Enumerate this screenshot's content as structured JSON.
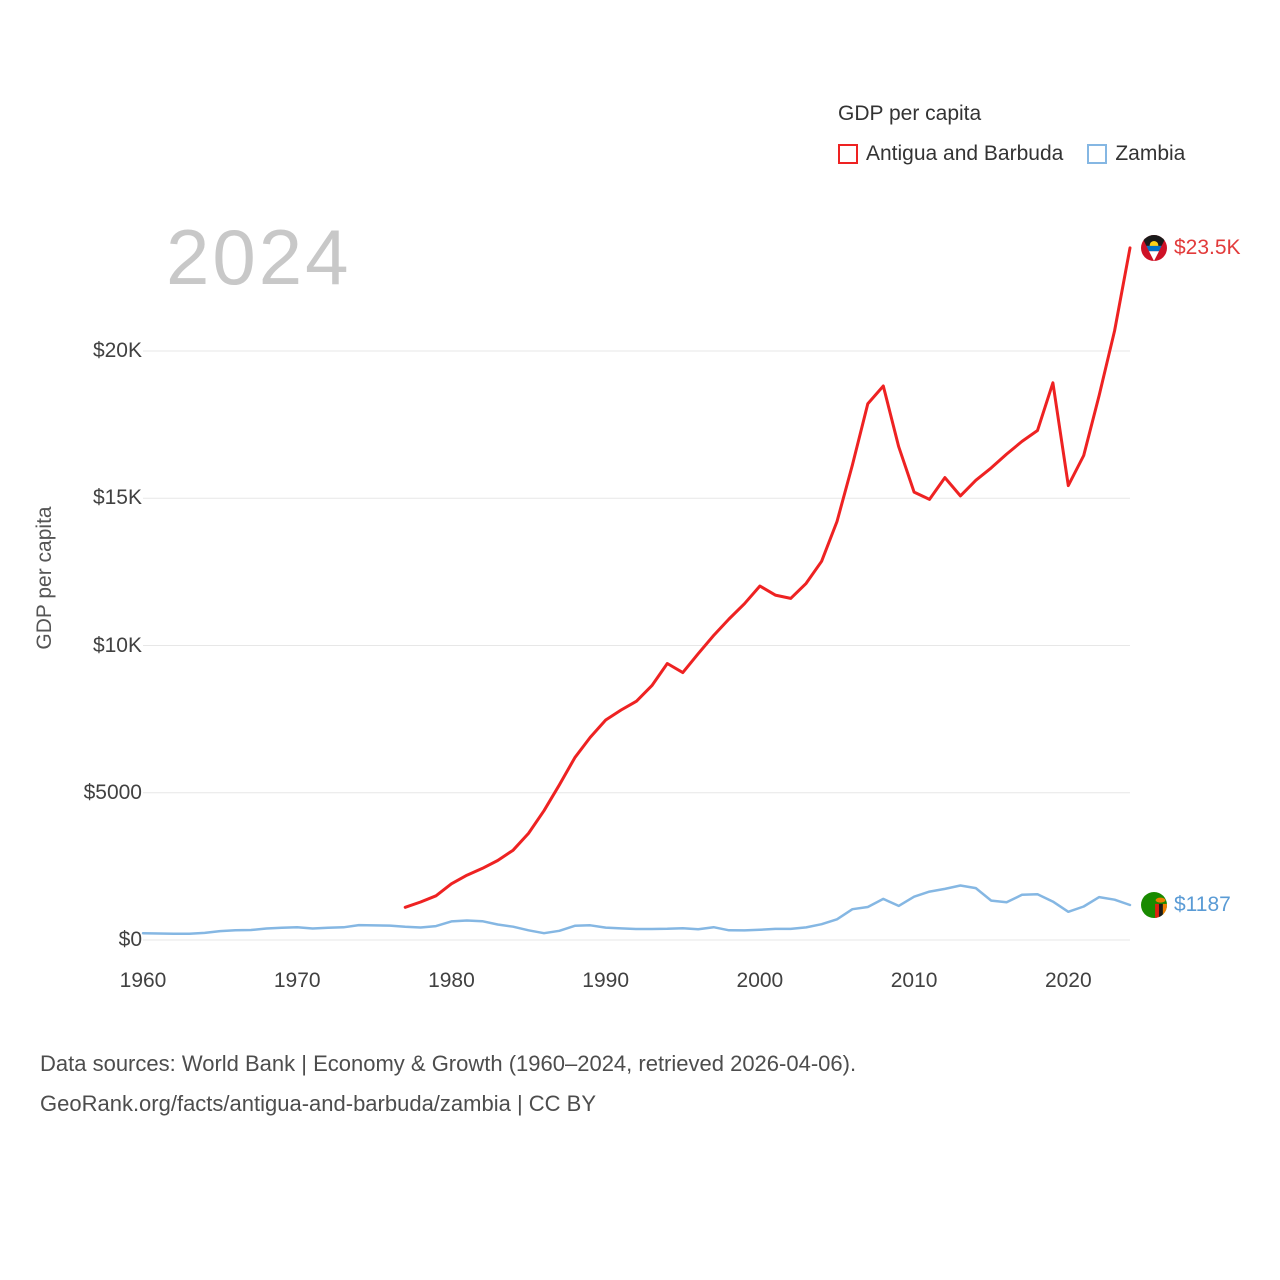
{
  "watermark_year": "2024",
  "legend": {
    "title": "GDP per capita",
    "items": [
      {
        "label": "Antigua and Barbuda",
        "color": "#ee2222"
      },
      {
        "label": "Zambia",
        "color": "#85b7e3"
      }
    ]
  },
  "y_axis": {
    "title": "GDP per capita",
    "ticks": [
      {
        "label": "$0",
        "value": 0
      },
      {
        "label": "$5000",
        "value": 5000
      },
      {
        "label": "$10K",
        "value": 10000
      },
      {
        "label": "$15K",
        "value": 15000
      },
      {
        "label": "$20K",
        "value": 20000
      }
    ]
  },
  "x_axis": {
    "ticks": [
      {
        "label": "1960",
        "value": 1960
      },
      {
        "label": "1970",
        "value": 1970
      },
      {
        "label": "1980",
        "value": 1980
      },
      {
        "label": "1990",
        "value": 1990
      },
      {
        "label": "2000",
        "value": 2000
      },
      {
        "label": "2010",
        "value": 2010
      },
      {
        "label": "2020",
        "value": 2020
      }
    ]
  },
  "end_labels": [
    {
      "label": "$23.5K",
      "series": "Antigua and Barbuda",
      "color": "#e23b3b",
      "icon": "antigua-and-barbuda-flag-icon"
    },
    {
      "label": "$1187",
      "series": "Zambia",
      "color": "#5a9bd5",
      "icon": "zambia-flag-icon"
    }
  ],
  "footer": {
    "line1": "Data sources: World Bank | Economy & Growth (1960–2024, retrieved 2026-04-06).",
    "line2": "GeoRank.org/facts/antigua-and-barbuda/zambia | CC BY"
  },
  "chart_data": {
    "type": "line",
    "title": "GDP per capita",
    "xlabel": "",
    "ylabel": "GDP per capita",
    "xlim": [
      1960,
      2024
    ],
    "ylim": [
      0,
      24000
    ],
    "grid": "horizontal",
    "legend_position": "top-right",
    "series": [
      {
        "name": "Antigua and Barbuda",
        "color": "#ee2222",
        "stroke_width": 3,
        "start_year": 1977,
        "end_label": "$23.5K",
        "values": [
          1110,
          1290,
          1500,
          1910,
          2200,
          2430,
          2700,
          3050,
          3620,
          4390,
          5270,
          6190,
          6880,
          7470,
          7810,
          8110,
          8640,
          9390,
          9080,
          9720,
          10340,
          10900,
          11420,
          12020,
          11710,
          11600,
          12110,
          12860,
          14210,
          16130,
          18210,
          18810,
          16750,
          15210,
          14960,
          15700,
          15080,
          15610,
          16030,
          16500,
          16930,
          17300,
          18920,
          15430,
          16450,
          18500,
          20690,
          23500
        ]
      },
      {
        "name": "Zambia",
        "color": "#85b7e3",
        "stroke_width": 2.5,
        "start_year": 1960,
        "end_label": "$1187",
        "values": [
          232,
          220,
          212,
          213,
          242,
          303,
          333,
          340,
          391,
          419,
          431,
          390,
          417,
          432,
          507,
          496,
          490,
          447,
          425,
          471,
          630,
          661,
          640,
          528,
          452,
          330,
          230,
          313,
          483,
          500,
          420,
          393,
          372,
          374,
          382,
          399,
          364,
          434,
          331,
          326,
          345,
          378,
          377,
          429,
          538,
          702,
          1047,
          1122,
          1394,
          1159,
          1469,
          1644,
          1734,
          1851,
          1763,
          1338,
          1280,
          1535,
          1556,
          1305,
          958,
          1137,
          1456,
          1369,
          1187
        ]
      }
    ]
  }
}
